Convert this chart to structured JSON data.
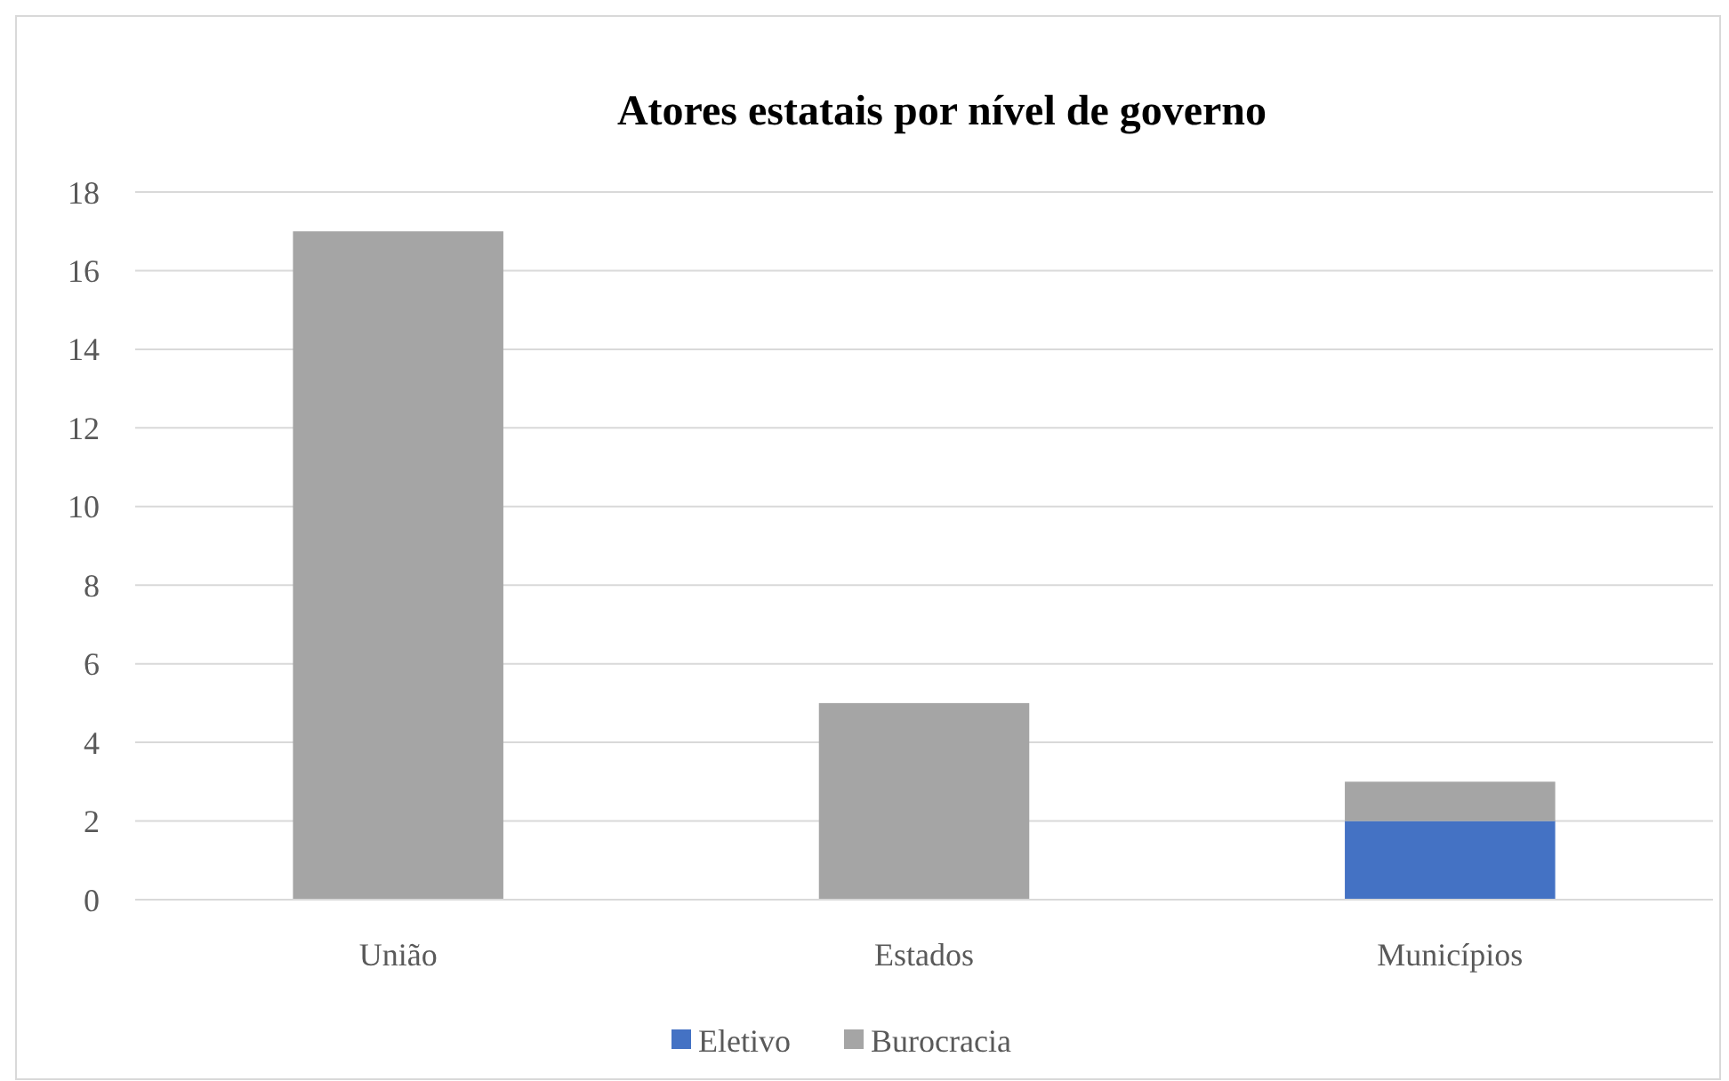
{
  "chart_data": {
    "type": "bar",
    "title": "Atores estatais por nível de governo",
    "categories": [
      "União",
      "Estados",
      "Municípios"
    ],
    "stacked": true,
    "series": [
      {
        "name": "Eletivo",
        "color": "#4472c4",
        "values": [
          0,
          0,
          2
        ]
      },
      {
        "name": "Burocracia",
        "color": "#a5a5a5",
        "values": [
          17,
          5,
          1
        ]
      }
    ],
    "ylim": [
      0,
      18
    ],
    "yticks": [
      0,
      2,
      4,
      6,
      8,
      10,
      12,
      14,
      16,
      18
    ],
    "grid": "y",
    "legend": "bottom"
  }
}
